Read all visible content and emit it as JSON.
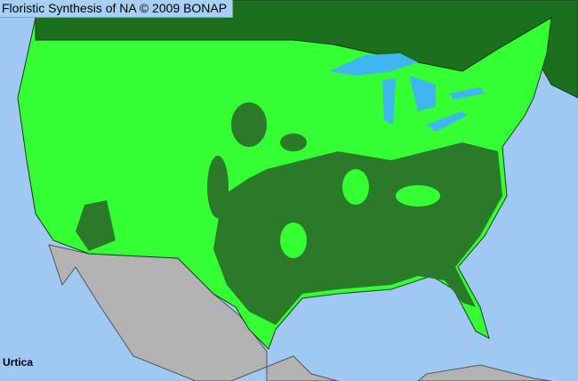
{
  "title": "Floristic Synthesis of NA © 2009 BONAP",
  "taxon": "Urtica",
  "colors": {
    "ocean": "#9fc9f2",
    "lakes": "#3fb6f0",
    "canada": "#1c6f1c",
    "present_county": "#33ff33",
    "dark_county": "#2a7a2a",
    "mexico": "#b3b3b3",
    "borders": "#1a3a1a"
  }
}
